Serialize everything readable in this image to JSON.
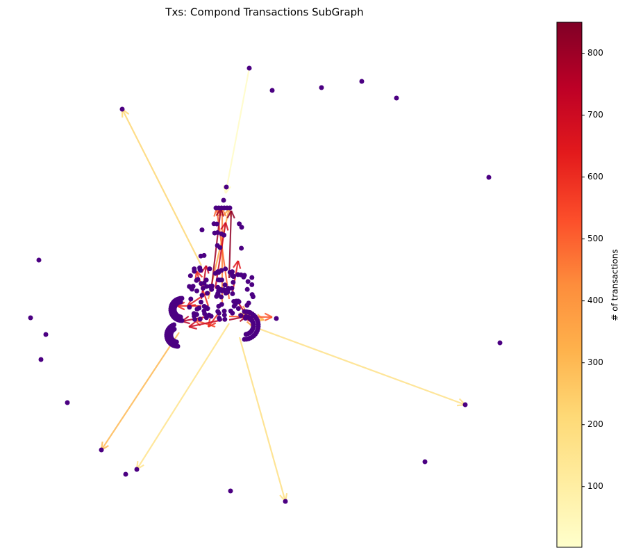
{
  "chart_data": {
    "type": "network",
    "title": "Txs:  Compond Transactions SubGraph",
    "colorbar_label": "# of transactions",
    "clim": [
      2,
      850
    ],
    "cticks": [
      100,
      200,
      300,
      400,
      500,
      600,
      700,
      800
    ],
    "colormap": [
      "#ffffcc",
      "#ffeda0",
      "#fed976",
      "#feb24c",
      "#fd8d3c",
      "#fc4e2a",
      "#e31a1c",
      "#bd0026",
      "#800026"
    ],
    "node_color": "#4b0082",
    "edge_values": [
      220,
      20,
      170,
      160,
      180,
      300,
      800,
      820,
      700,
      720,
      650,
      600,
      450,
      520,
      760,
      700,
      780,
      650,
      740,
      600,
      400,
      350,
      500,
      620,
      300,
      550
    ]
  }
}
